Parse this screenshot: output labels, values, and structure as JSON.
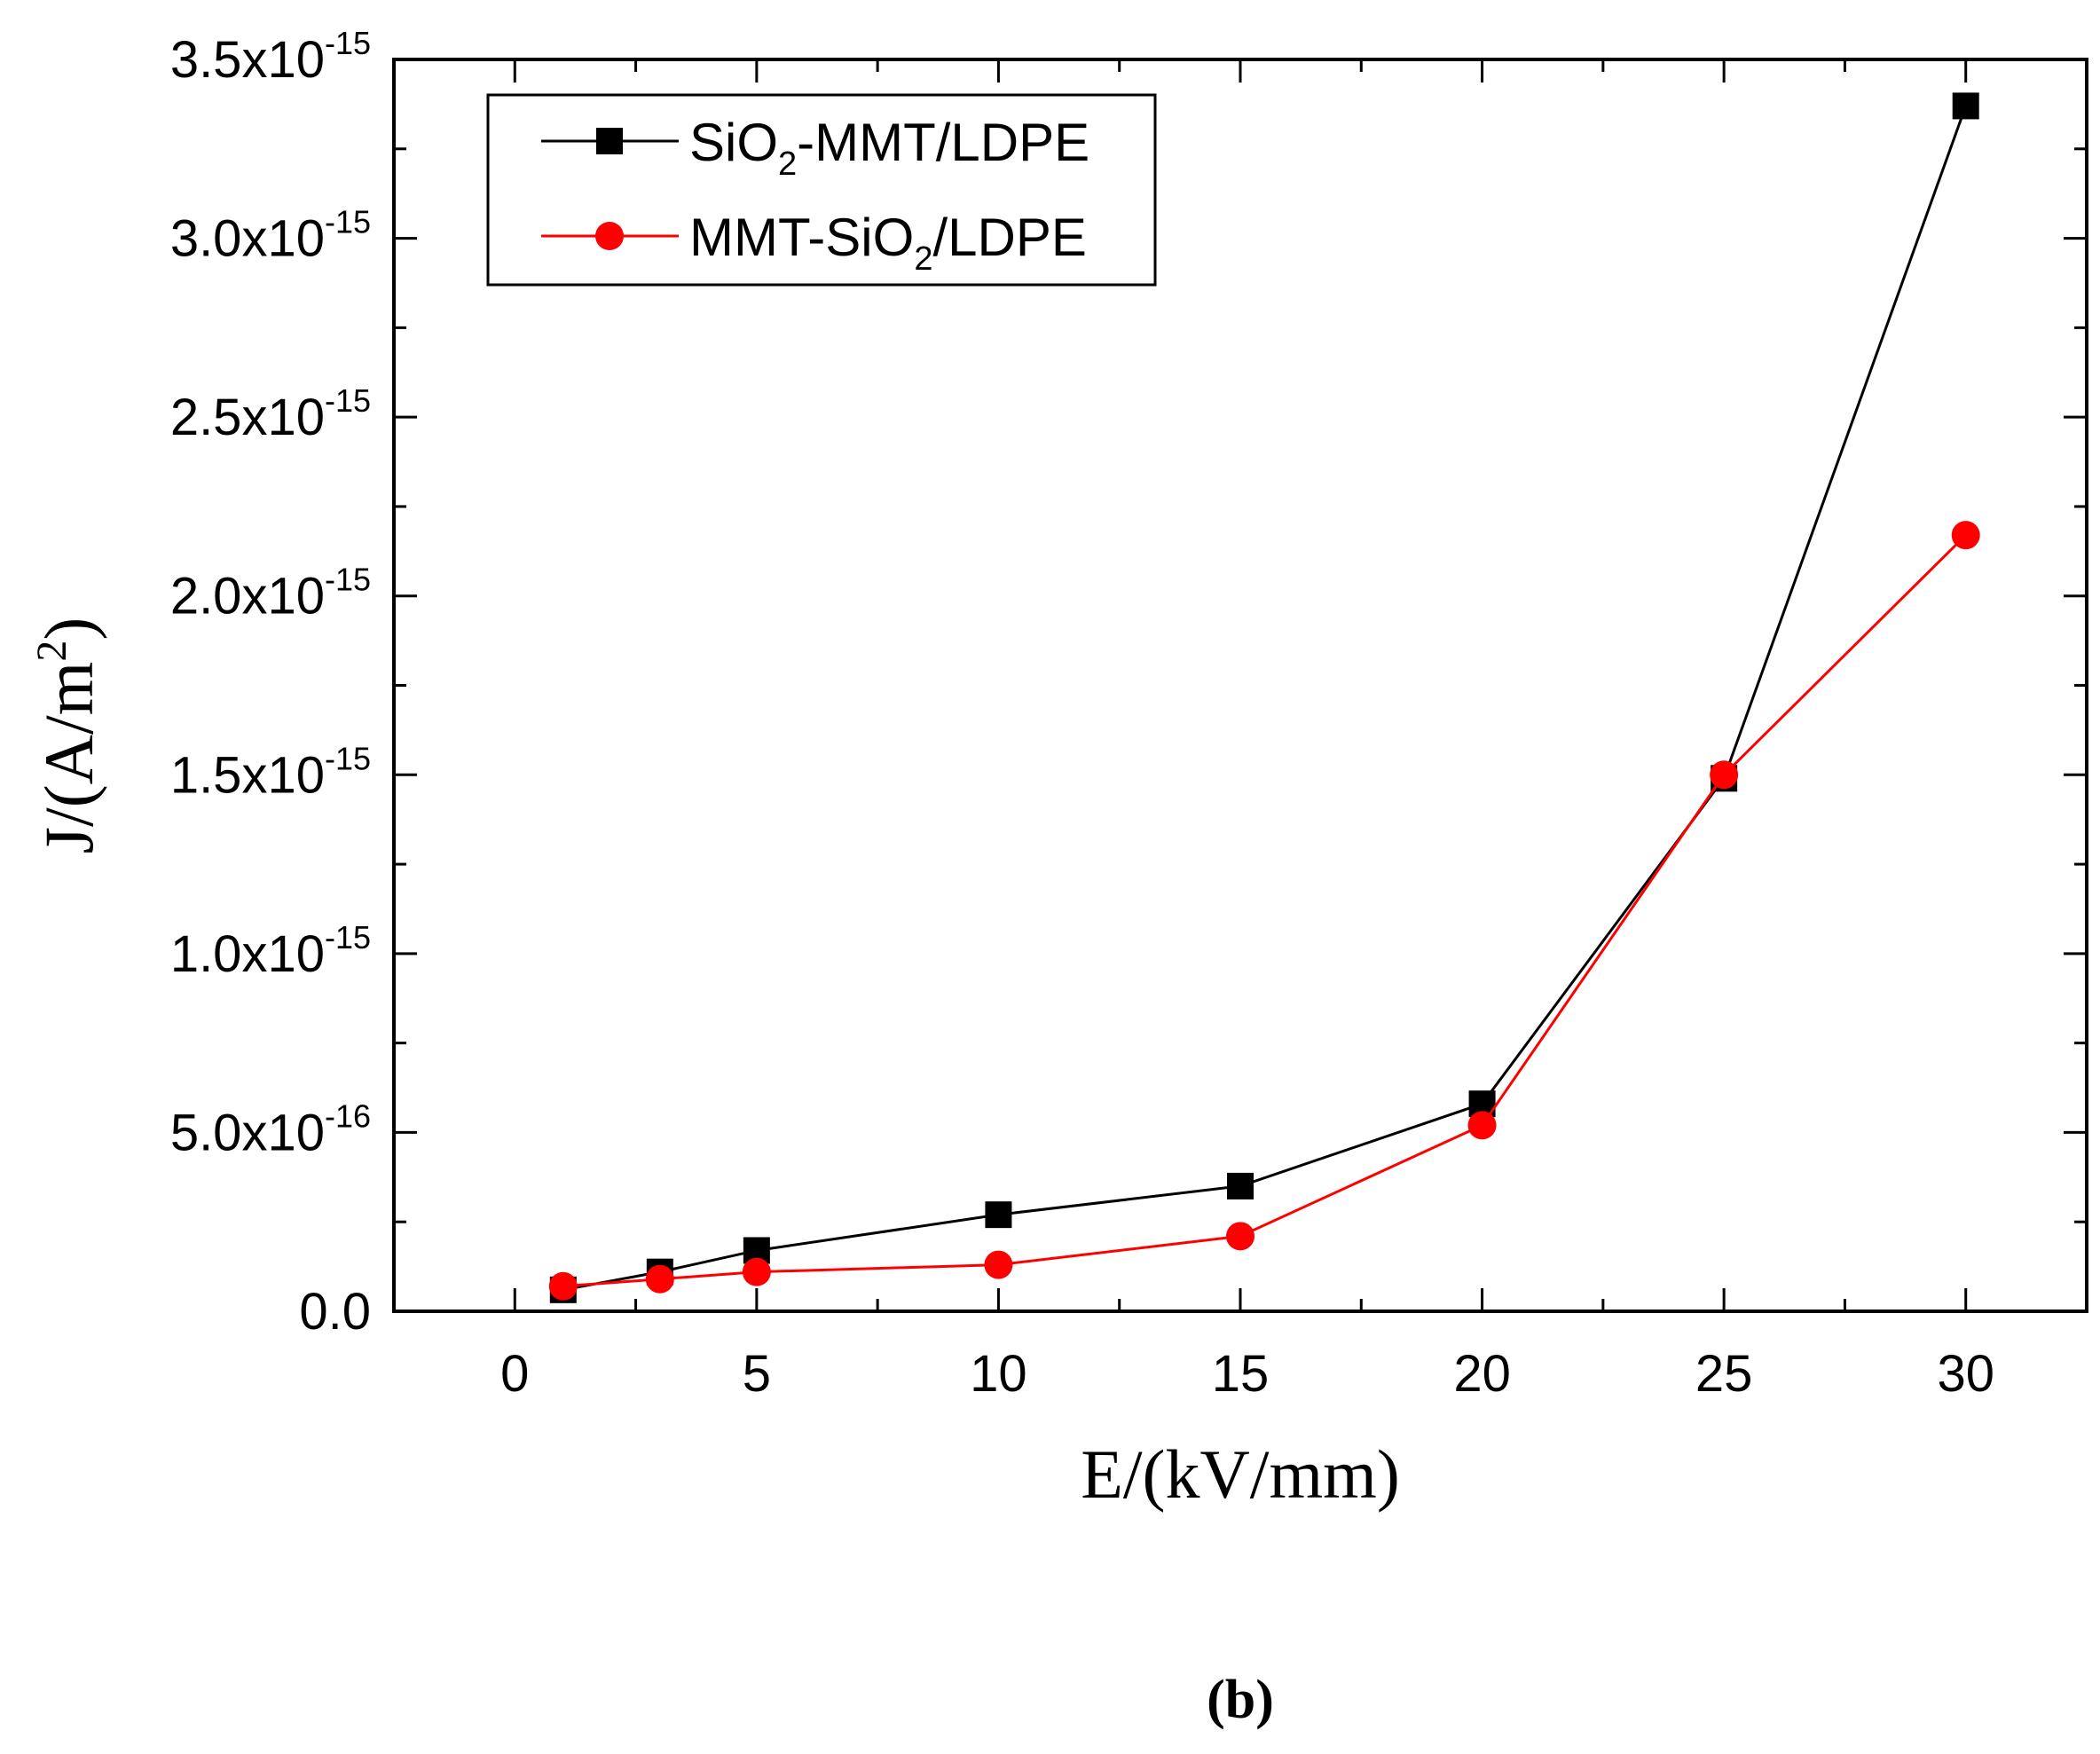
{
  "chart_data": {
    "type": "line",
    "title": "",
    "xlabel": "E/(kV/mm)",
    "ylabel": {
      "prefix": "J/(A/m",
      "superscript": "2",
      "suffix": ")"
    },
    "xlim": [
      -2.5,
      32.5
    ],
    "ylim": [
      0,
      3.5e-15
    ],
    "xticks": [
      "0",
      "5",
      "10",
      "15",
      "20",
      "25",
      "30"
    ],
    "yticks": [
      {
        "value": 0,
        "mantissa": "0.0",
        "exponent": ""
      },
      {
        "value": 5e-16,
        "mantissa": "5.0x10",
        "exponent": "-16"
      },
      {
        "value": 1e-15,
        "mantissa": "1.0x10",
        "exponent": "-15"
      },
      {
        "value": 1.5e-15,
        "mantissa": "1.5x10",
        "exponent": "-15"
      },
      {
        "value": 2e-15,
        "mantissa": "2.0x10",
        "exponent": "-15"
      },
      {
        "value": 2.5e-15,
        "mantissa": "2.5x10",
        "exponent": "-15"
      },
      {
        "value": 3e-15,
        "mantissa": "3.0x10",
        "exponent": "-15"
      },
      {
        "value": 3.5e-15,
        "mantissa": "3.5x10",
        "exponent": "-15"
      }
    ],
    "legend_position": "top-left",
    "series": [
      {
        "name": "SiO2-MMT/LDPE",
        "label_parts": [
          "SiO",
          "2",
          "-MMT/LDPE"
        ],
        "color": "#000000",
        "marker": "square",
        "x": [
          1,
          3,
          5,
          10,
          15,
          20,
          25,
          30
        ],
        "values": [
          6e-17,
          1.1e-16,
          1.7e-16,
          2.7e-16,
          3.5e-16,
          5.8e-16,
          1.49e-15,
          3.37e-15
        ]
      },
      {
        "name": "MMT-SiO2/LDPE",
        "label_parts": [
          "MMT-SiO",
          "2",
          "/LDPE"
        ],
        "color": "#ff0000",
        "marker": "circle",
        "x": [
          1,
          3,
          5,
          10,
          15,
          20,
          25,
          30
        ],
        "values": [
          7e-17,
          9e-17,
          1.1e-16,
          1.3e-16,
          2.1e-16,
          5.2e-16,
          1.5e-15,
          2.17e-15
        ]
      }
    ],
    "caption": "(b)"
  }
}
